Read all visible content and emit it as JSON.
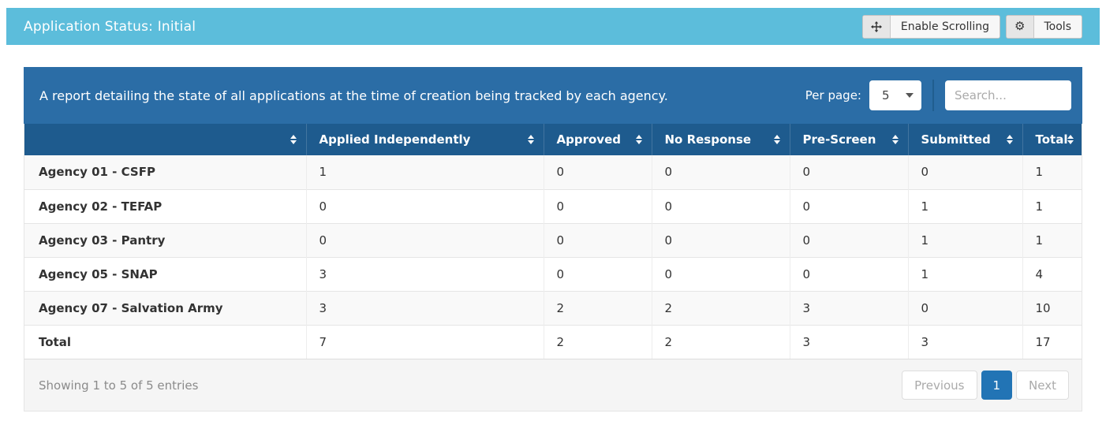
{
  "top_bar": {
    "title": "Application Status: Initial",
    "enable_scrolling_label": "Enable Scrolling",
    "tools_label": "Tools"
  },
  "panel": {
    "description": "A report detailing the state of all applications at the time of creation being tracked by each agency.",
    "per_page_label": "Per page:",
    "per_page_value": "5",
    "search_placeholder": "Search..."
  },
  "table": {
    "columns": [
      "",
      "Applied Independently",
      "Approved",
      "No Response",
      "Pre-Screen",
      "Submitted",
      "Total"
    ],
    "rows": [
      {
        "label": "Agency 01 - CSFP",
        "values": [
          1,
          0,
          0,
          0,
          0,
          1
        ]
      },
      {
        "label": "Agency 02 - TEFAP",
        "values": [
          0,
          0,
          0,
          0,
          1,
          1
        ]
      },
      {
        "label": "Agency 03 - Pantry",
        "values": [
          0,
          0,
          0,
          0,
          1,
          1
        ]
      },
      {
        "label": "Agency 05 - SNAP",
        "values": [
          3,
          0,
          0,
          0,
          1,
          4
        ]
      },
      {
        "label": "Agency 07 - Salvation Army",
        "values": [
          3,
          2,
          2,
          3,
          0,
          10
        ]
      },
      {
        "label": "Total",
        "values": [
          7,
          2,
          2,
          3,
          3,
          17
        ]
      }
    ]
  },
  "footer": {
    "showing_text": "Showing 1 to 5 of 5 entries",
    "pagination": {
      "previous": "Previous",
      "page": "1",
      "next": "Next"
    }
  },
  "colors": {
    "topbar": "#5cbddb",
    "panel_header": "#2b6da6",
    "table_header": "#1e5b8e",
    "active_page": "#2274b5"
  }
}
